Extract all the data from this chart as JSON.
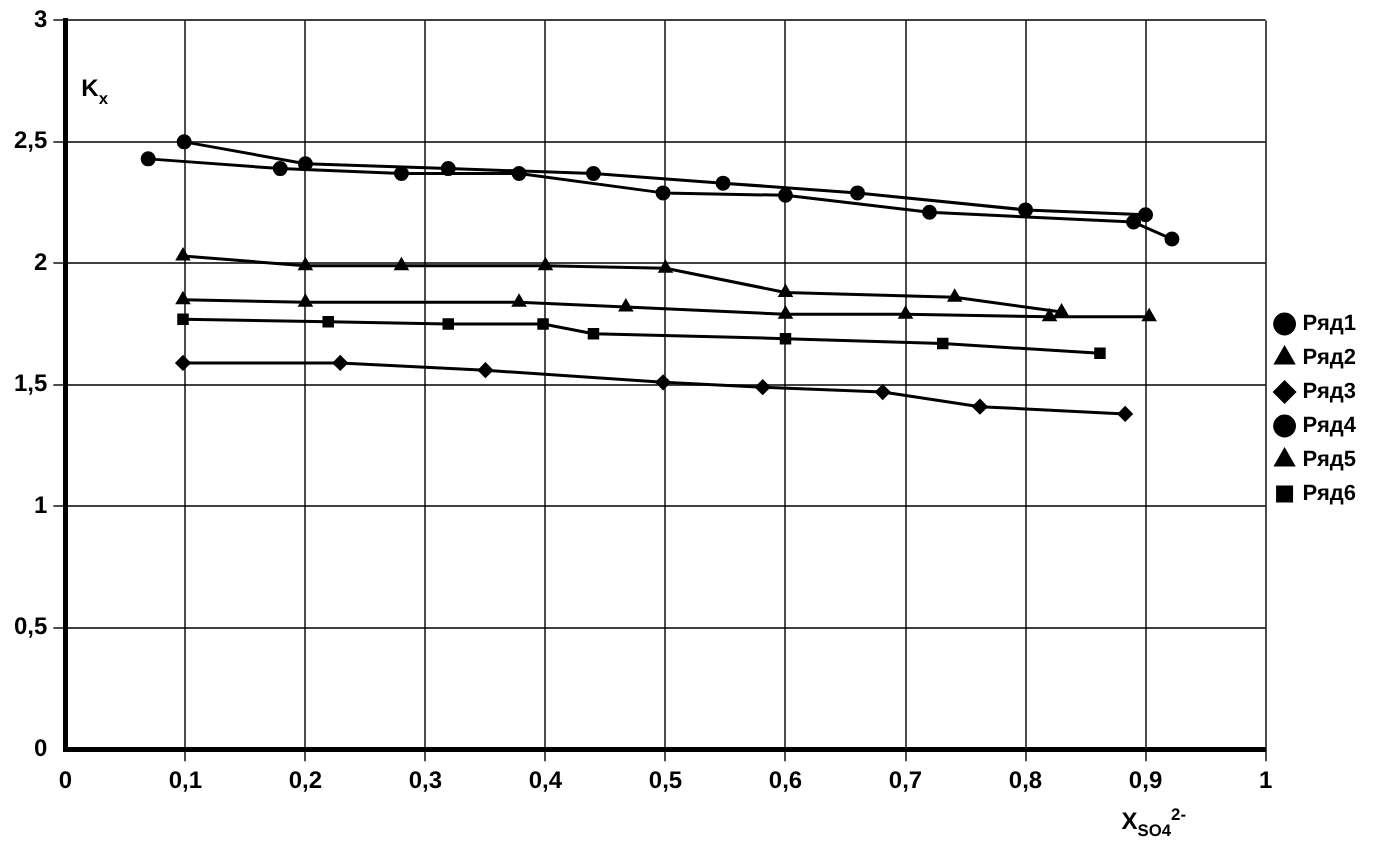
{
  "chart_data": {
    "type": "line",
    "xlabel": "X$_{SO4}$$^{2-}$",
    "ylabel": "K$_{x}$",
    "xlim": [
      0,
      1
    ],
    "ylim": [
      0,
      3
    ],
    "xticks": [
      0,
      {
        "value": 0.1,
        "label": "0,1"
      },
      {
        "value": 0.2,
        "label": "0,2"
      },
      {
        "value": 0.3,
        "label": "0,3"
      },
      {
        "value": 0.4,
        "label": "0,4"
      },
      {
        "value": 0.5,
        "label": "0,5"
      },
      {
        "value": 0.6,
        "label": "0,6"
      },
      {
        "value": 0.7,
        "label": "0,7"
      },
      {
        "value": 0.8,
        "label": "0,8"
      },
      {
        "value": 0.9,
        "label": "0,9"
      },
      1
    ],
    "yticks": [
      0,
      {
        "value": 0.5,
        "label": "0,5"
      },
      1,
      {
        "value": 1.5,
        "label": "1,5"
      },
      2,
      {
        "value": 2.5,
        "label": "2,5"
      },
      3
    ],
    "grid": true,
    "legend": "right",
    "line_style": "solid",
    "series": [
      {
        "name": "Ряд1",
        "color": "#000000",
        "marker": "circle",
        "x": [
          0.069,
          0.179,
          0.28,
          0.378,
          0.498,
          0.6,
          0.72,
          0.89,
          0.922
        ],
        "values": [
          2.43,
          2.39,
          2.37,
          2.37,
          2.29,
          2.28,
          2.21,
          2.17,
          2.1
        ]
      },
      {
        "name": "Ряд2",
        "color": "#000000",
        "marker": "triangle",
        "x": [
          0.098,
          0.2,
          0.378,
          0.467,
          0.6,
          0.7,
          0.82,
          0.903
        ],
        "values": [
          1.85,
          1.84,
          1.84,
          1.82,
          1.79,
          1.79,
          1.78,
          1.78
        ]
      },
      {
        "name": "Ряд3",
        "color": "#000000",
        "marker": "diamond",
        "x": [
          0.098,
          0.229,
          0.35,
          0.498,
          0.581,
          0.681,
          0.762,
          0.883
        ],
        "values": [
          1.59,
          1.59,
          1.56,
          1.51,
          1.49,
          1.47,
          1.41,
          1.38
        ]
      },
      {
        "name": "Ряд4",
        "color": "#000000",
        "marker": "circle",
        "x": [
          0.099,
          0.2,
          0.319,
          0.44,
          0.548,
          0.66,
          0.8,
          0.9
        ],
        "values": [
          2.5,
          2.41,
          2.39,
          2.37,
          2.33,
          2.29,
          2.22,
          2.2
        ]
      },
      {
        "name": "Ряд5",
        "color": "#000000",
        "marker": "triangle",
        "x": [
          0.098,
          0.2,
          0.28,
          0.4,
          0.5,
          0.6,
          0.741,
          0.83
        ],
        "values": [
          2.03,
          1.99,
          1.99,
          1.99,
          1.98,
          1.88,
          1.86,
          1.8
        ]
      },
      {
        "name": "Ряд6",
        "color": "#000000",
        "marker": "square",
        "x": [
          0.098,
          0.219,
          0.319,
          0.398,
          0.44,
          0.6,
          0.731,
          0.862
        ],
        "values": [
          1.77,
          1.76,
          1.75,
          1.75,
          1.71,
          1.69,
          1.67,
          1.63
        ]
      }
    ]
  }
}
